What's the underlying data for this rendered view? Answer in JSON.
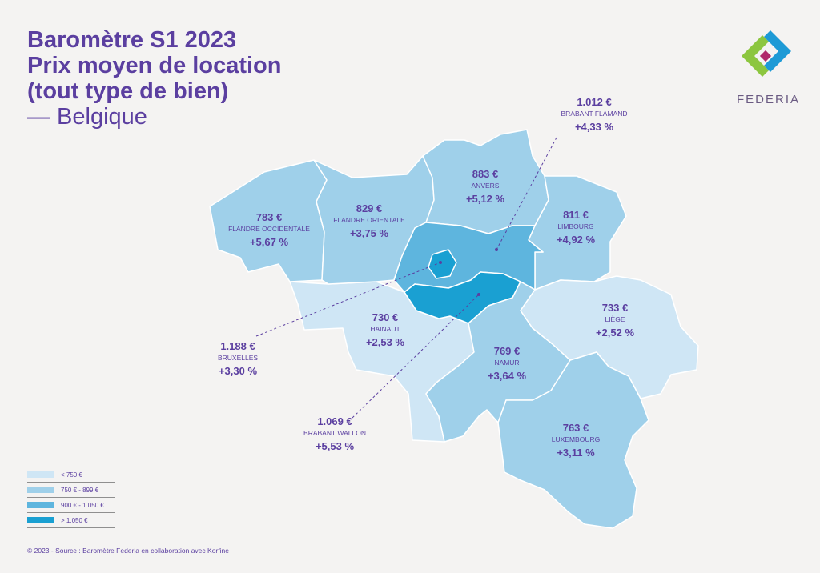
{
  "title": {
    "line1": "Baromètre S1 2023",
    "line2": "Prix moyen de location",
    "line3": "(tout type de bien)",
    "subtitle": "— Belgique"
  },
  "logo": {
    "text": "FEDERIA",
    "colors": [
      "#8cc63f",
      "#1d9ad6",
      "#b0286b"
    ]
  },
  "colors": {
    "lt750": "#cfe6f5",
    "r750_899": "#9fd0ea",
    "r900_1050": "#5eb5de",
    "gt1050": "#1aa0d2",
    "text": "#5b3fa0"
  },
  "regions": {
    "flandre_occidentale": {
      "price": "783 €",
      "name": "FLANDRE OCCIDENTALE",
      "change": "+5,67 %"
    },
    "flandre_orientale": {
      "price": "829 €",
      "name": "FLANDRE ORIENTALE",
      "change": "+3,75 %"
    },
    "anvers": {
      "price": "883 €",
      "name": "ANVERS",
      "change": "+5,12 %"
    },
    "limbourg": {
      "price": "811 €",
      "name": "LIMBOURG",
      "change": "+4,92 %"
    },
    "brabant_flamand": {
      "price": "1.012 €",
      "name": "BRABANT FLAMAND",
      "change": "+4,33 %"
    },
    "bruxelles": {
      "price": "1.188 €",
      "name": "BRUXELLES",
      "change": "+3,30 %"
    },
    "brabant_wallon": {
      "price": "1.069 €",
      "name": "BRABANT WALLON",
      "change": "+5,53 %"
    },
    "hainaut": {
      "price": "730 €",
      "name": "HAINAUT",
      "change": "+2,53 %"
    },
    "namur": {
      "price": "769 €",
      "name": "NAMUR",
      "change": "+3,64 %"
    },
    "liege": {
      "price": "733 €",
      "name": "LIÈGE",
      "change": "+2,52 %"
    },
    "luxembourg": {
      "price": "763 €",
      "name": "LUXEMBOURG",
      "change": "+3,11 %"
    }
  },
  "legend": [
    {
      "label": "< 750 €",
      "color": "#cfe6f5"
    },
    {
      "label": "750 € - 899 €",
      "color": "#9fd0ea"
    },
    {
      "label": "900 € - 1.050 €",
      "color": "#5eb5de"
    },
    {
      "label": "> 1.050 €",
      "color": "#1aa0d2"
    }
  ],
  "footer": "© 2023 - Source : Baromètre Federia en collaboration avec Korfine"
}
